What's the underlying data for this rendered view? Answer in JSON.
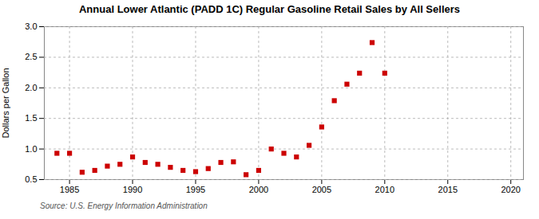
{
  "chart_data": {
    "type": "scatter",
    "title": "Annual Lower Atlantic (PADD 1C) Regular Gasoline Retail Sales by All Sellers",
    "ylabel": "Dollars per Gallon",
    "annotation": "Source: U.S. Energy Information Administration",
    "x": [
      1984,
      1985,
      1986,
      1987,
      1988,
      1989,
      1990,
      1991,
      1992,
      1993,
      1994,
      1995,
      1996,
      1997,
      1998,
      1999,
      2000,
      2001,
      2002,
      2003,
      2004,
      2005,
      2006,
      2007,
      2008,
      2009,
      2010
    ],
    "values": [
      0.93,
      0.93,
      0.62,
      0.65,
      0.72,
      0.75,
      0.87,
      0.78,
      0.75,
      0.7,
      0.65,
      0.63,
      0.68,
      0.78,
      0.79,
      0.58,
      0.65,
      1.0,
      0.93,
      0.87,
      1.06,
      1.36,
      1.79,
      2.06,
      2.24,
      2.74,
      2.24
    ],
    "color": "#cc0000",
    "marker": "square",
    "xlim": [
      1983,
      2021
    ],
    "ylim": [
      0.5,
      3.0
    ],
    "xticks": [
      1985,
      1990,
      1995,
      2000,
      2005,
      2010,
      2015,
      2020
    ],
    "yticks": [
      0.5,
      {
        "value": 1,
        "label": "1.0"
      },
      1.5,
      {
        "value": 2,
        "label": "2.0"
      },
      2.5,
      {
        "value": 3,
        "label": "3.0"
      }
    ],
    "grid": true
  }
}
